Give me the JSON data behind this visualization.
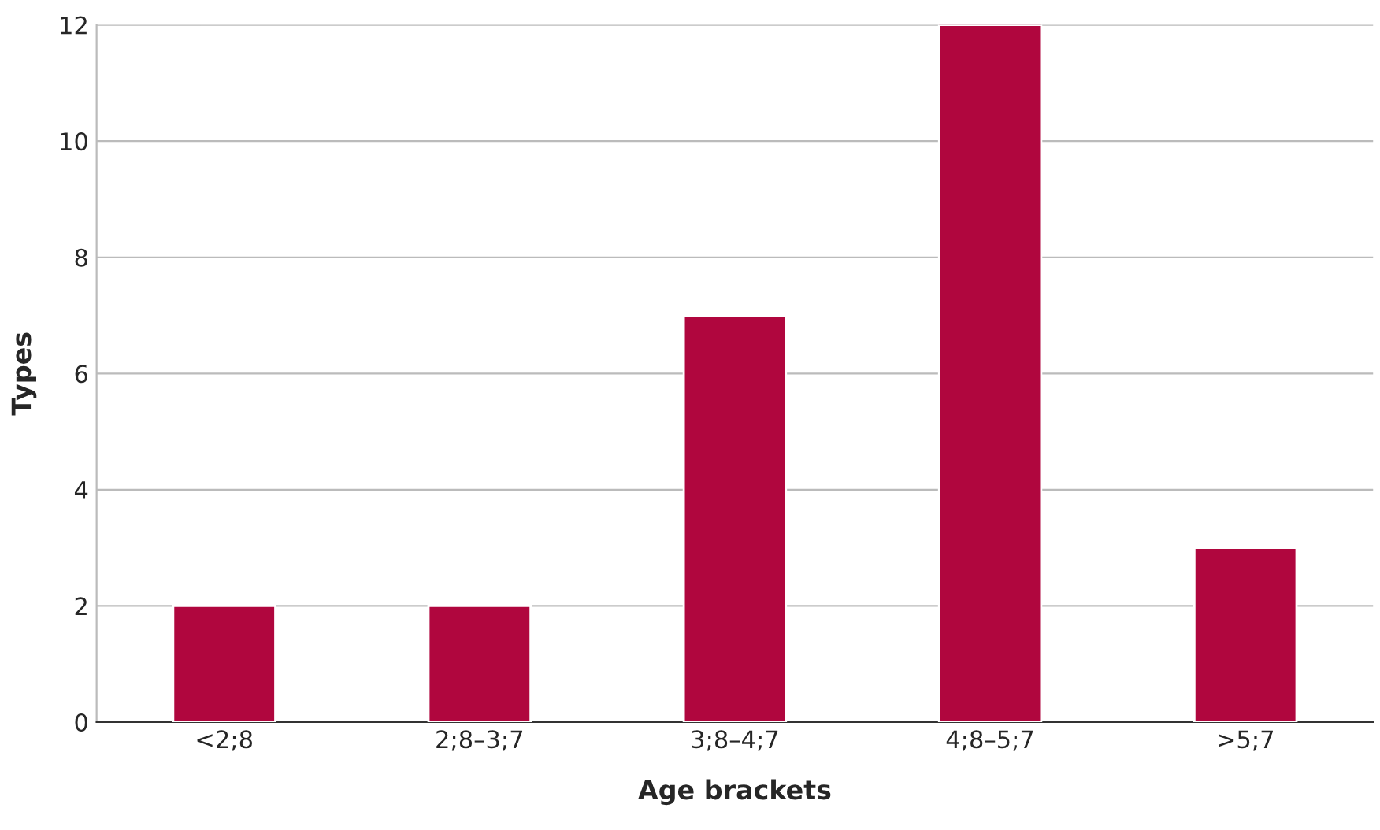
{
  "chart_data": {
    "type": "bar",
    "xlabel": "Age brackets",
    "ylabel": "Types",
    "categories": [
      "<2;8",
      "2;8–3;7",
      "3;8–4;7",
      "4;8–5;7",
      ">5;7"
    ],
    "values": [
      2,
      2,
      7,
      12,
      3
    ],
    "color": "#b0063e",
    "ylim": [
      0,
      12
    ],
    "yticks": [
      0,
      2,
      4,
      6,
      8,
      10,
      12
    ],
    "grid": "y",
    "legend": false
  }
}
